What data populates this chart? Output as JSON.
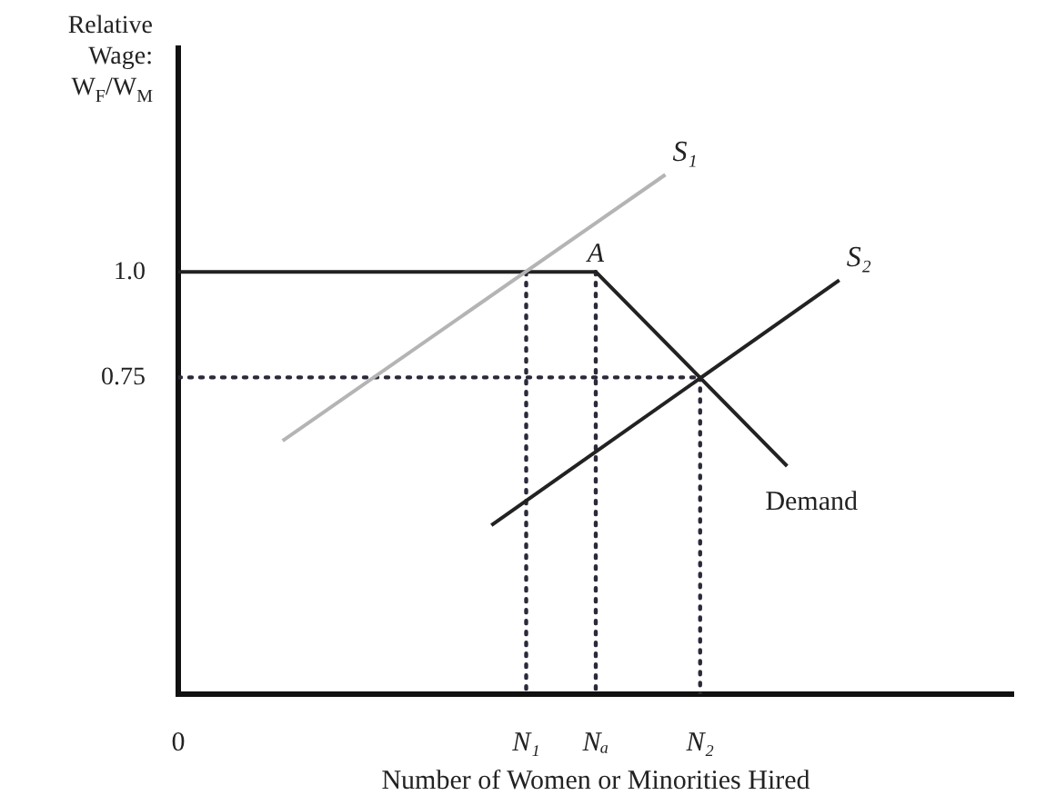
{
  "chart_data": {
    "type": "line",
    "ylabel": "Relative Wage: W$_{F}$/W$_{M}$",
    "xlabel": "Number of Women or Minorities Hired",
    "categories": [
      "0",
      null,
      null,
      null,
      null,
      null,
      null,
      null,
      null,
      null,
      null,
      null,
      null,
      null,
      null,
      null,
      null,
      null,
      null,
      null,
      "N₁",
      null,
      null,
      null,
      "Nₐ",
      null,
      null,
      null,
      null,
      null,
      "N₂",
      null,
      null,
      null,
      null,
      null,
      null,
      null,
      null,
      null,
      null,
      null,
      null,
      null,
      null,
      null,
      null,
      null,
      null
    ],
    "ylim": [
      0,
      1.53
    ],
    "yticks": [
      0.75,
      {
        "value": 1,
        "label": "1.0"
      }
    ],
    "grid": false,
    "legend": false,
    "marker": "none",
    "annotations": [
      {
        "text": "A",
        "x": "Nₐ",
        "y": 1.0
      }
    ],
    "series": [
      {
        "name": "S₁",
        "color": "#b4b4b4",
        "values": [
          null,
          null,
          null,
          null,
          null,
          null,
          0.6,
          null,
          null,
          null,
          null,
          null,
          null,
          null,
          null,
          null,
          null,
          null,
          null,
          null,
          null,
          null,
          null,
          null,
          null,
          null,
          null,
          null,
          1.23,
          null,
          null,
          null,
          null,
          null,
          null,
          null,
          null,
          null,
          null,
          null,
          null,
          null,
          null,
          null,
          null,
          null,
          null,
          null,
          null
        ]
      },
      {
        "name": "S₂",
        "color": "#222222",
        "values": [
          null,
          null,
          null,
          null,
          null,
          null,
          null,
          null,
          null,
          null,
          null,
          null,
          null,
          null,
          null,
          null,
          null,
          null,
          0.4,
          null,
          null,
          null,
          null,
          null,
          null,
          null,
          null,
          null,
          null,
          null,
          null,
          null,
          null,
          null,
          null,
          null,
          null,
          null,
          0.98,
          null,
          null,
          null,
          null,
          null,
          null,
          null,
          null,
          null,
          null
        ]
      },
      {
        "name": "Demand",
        "color": "#222222",
        "values": [
          1.0,
          null,
          null,
          null,
          null,
          null,
          null,
          null,
          null,
          null,
          null,
          null,
          null,
          null,
          null,
          null,
          null,
          null,
          null,
          null,
          null,
          null,
          null,
          null,
          1.0,
          null,
          null,
          null,
          null,
          null,
          null,
          null,
          null,
          null,
          null,
          0.54,
          null,
          null,
          null,
          null,
          null,
          null,
          null,
          null,
          null,
          null,
          null,
          null,
          null
        ]
      },
      {
        "color": "#2a2a3a",
        "line_style": "dotted",
        "x": [
          "0",
          "N₂"
        ],
        "values": [
          0.75,
          0.75
        ]
      },
      {
        "color": "#2a2a3a",
        "line_style": "dotted",
        "x": [
          "N₁",
          "N₁"
        ],
        "values": [
          1.0,
          0
        ]
      },
      {
        "color": "#2a2a3a",
        "line_style": "dotted",
        "x": [
          "Nₐ",
          "Nₐ"
        ],
        "values": [
          1.0,
          0
        ]
      },
      {
        "color": "#2a2a3a",
        "line_style": "dotted",
        "x": [
          "N₂",
          "N₂"
        ],
        "values": [
          0.75,
          0
        ]
      }
    ]
  }
}
